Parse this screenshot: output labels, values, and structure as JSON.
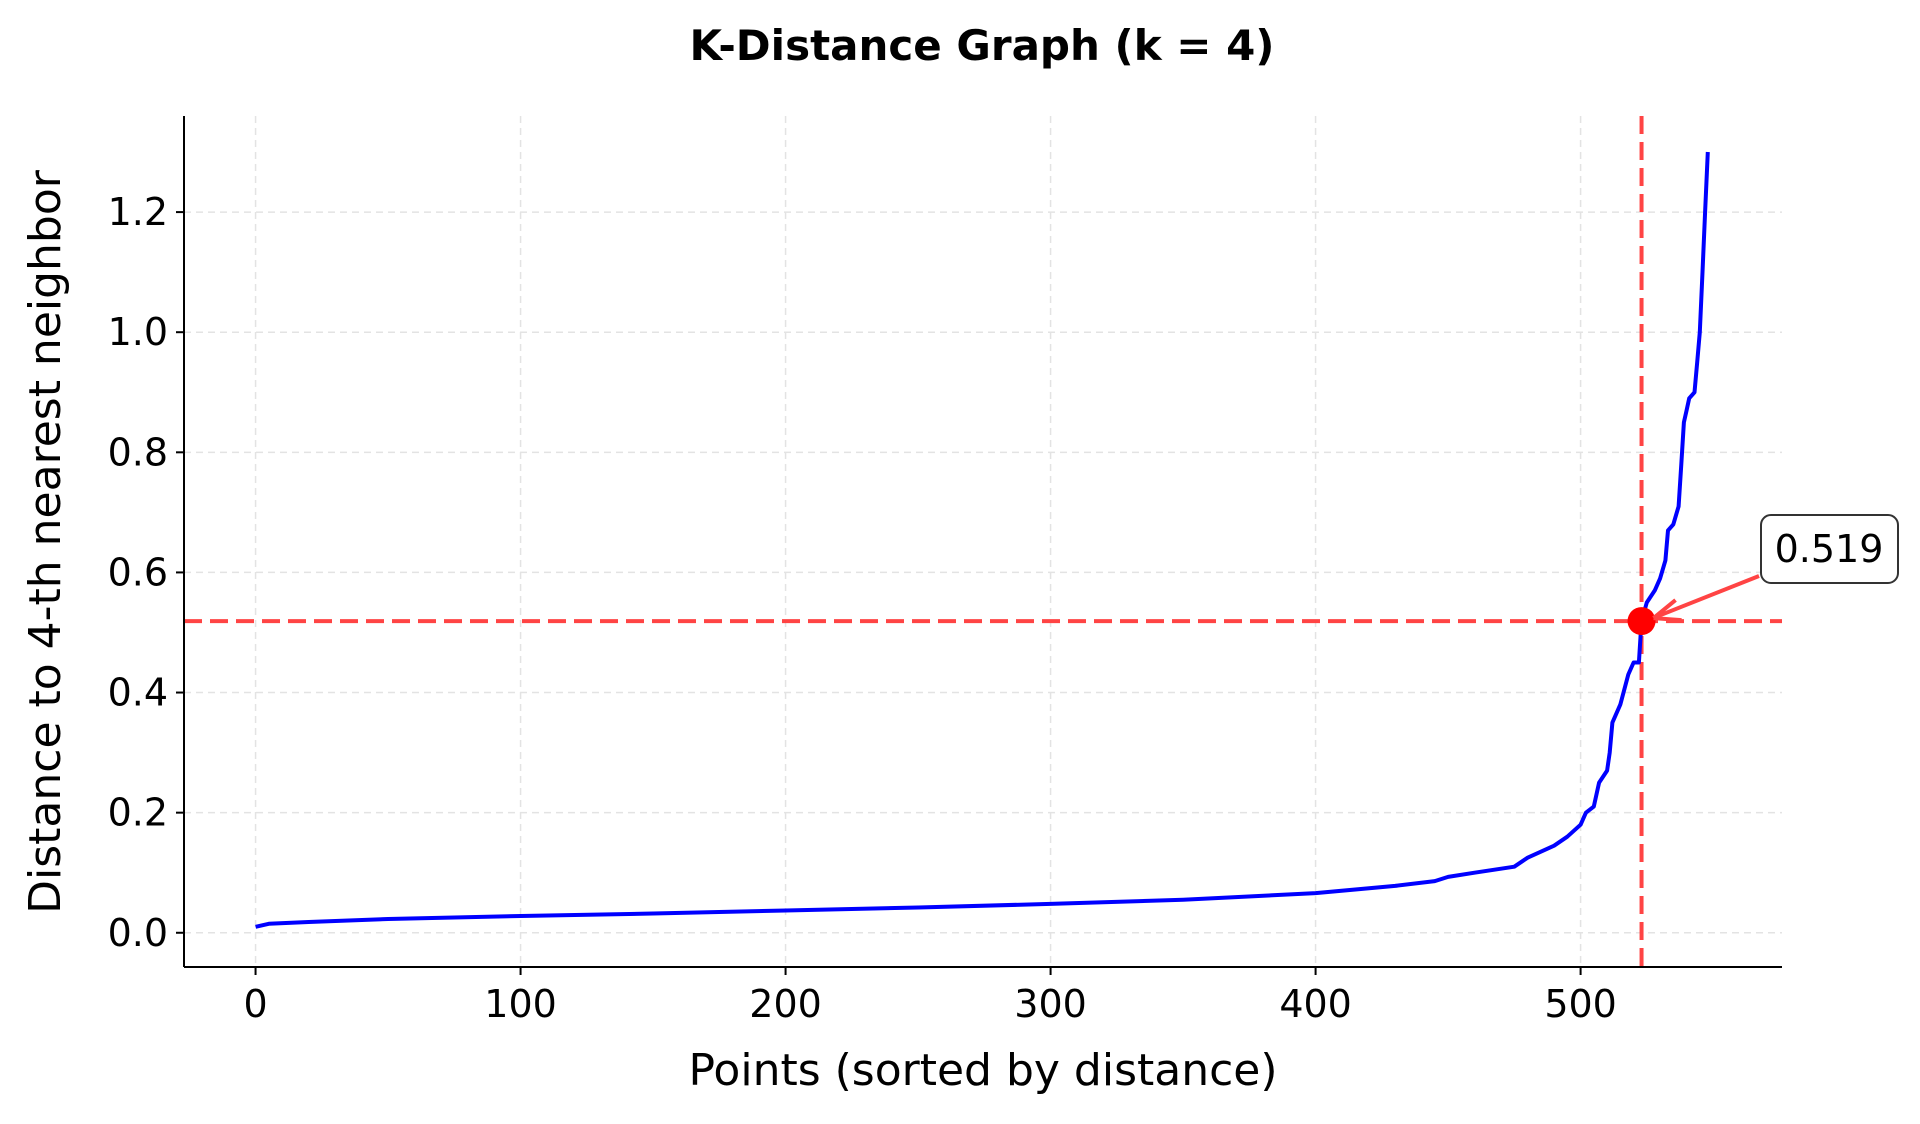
{
  "chart_data": {
    "type": "line",
    "title": "K-Distance Graph (k = 4)",
    "xlabel": "Points (sorted by distance)",
    "ylabel": "Distance to 4-th nearest neighbor",
    "xlim": [
      -27,
      576
    ],
    "ylim": [
      -0.057,
      1.36
    ],
    "xticks": [
      0,
      100,
      200,
      300,
      400,
      500
    ],
    "yticks": [
      0.0,
      0.2,
      0.4,
      0.6,
      0.8,
      1.0,
      1.2
    ],
    "xtick_labels": [
      "0",
      "100",
      "200",
      "300",
      "400",
      "500"
    ],
    "ytick_labels": [
      "0.0",
      "0.2",
      "0.4",
      "0.6",
      "0.8",
      "1.0",
      "1.2"
    ],
    "grid": true,
    "series": [
      {
        "color": "#0000ff",
        "x": [
          0,
          5,
          20,
          50,
          100,
          150,
          200,
          250,
          300,
          350,
          400,
          430,
          445,
          450,
          460,
          475,
          480,
          490,
          495,
          500,
          502,
          505,
          507,
          510,
          511,
          512,
          515,
          518,
          520,
          522,
          523,
          525,
          528,
          530,
          532,
          533,
          535,
          537,
          538,
          539,
          540,
          541,
          543,
          544,
          545,
          546,
          547,
          548
        ],
        "y": [
          0.01,
          0.015,
          0.018,
          0.023,
          0.028,
          0.032,
          0.037,
          0.042,
          0.048,
          0.055,
          0.066,
          0.078,
          0.086,
          0.093,
          0.1,
          0.11,
          0.125,
          0.145,
          0.16,
          0.18,
          0.2,
          0.21,
          0.25,
          0.27,
          0.3,
          0.35,
          0.38,
          0.43,
          0.45,
          0.45,
          0.519,
          0.55,
          0.57,
          0.59,
          0.62,
          0.67,
          0.68,
          0.71,
          0.78,
          0.85,
          0.87,
          0.89,
          0.9,
          0.95,
          1.0,
          1.1,
          1.2,
          1.3
        ]
      }
    ],
    "threshold": {
      "x": 523,
      "y": 0.519,
      "color": "#ff4444",
      "marker_color": "#ff0000",
      "label": "0.519"
    }
  }
}
